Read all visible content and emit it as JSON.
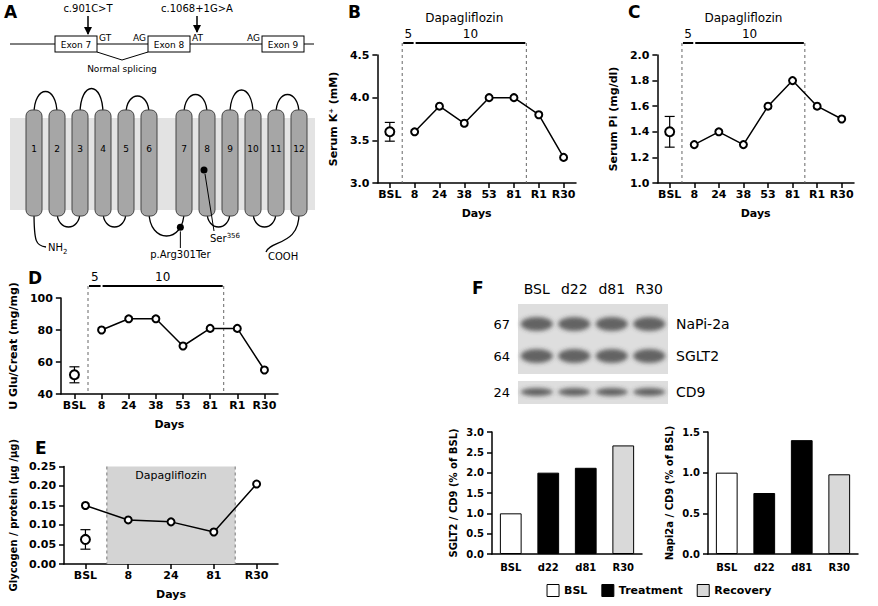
{
  "chart_data": [
    {
      "panel": "B",
      "type": "line",
      "x_label": "Days",
      "y_label": "Serum K⁺ (mM)",
      "categories": [
        "BSL",
        "8",
        "24",
        "38",
        "53",
        "81",
        "R1",
        "R30"
      ],
      "series": [
        {
          "color": "#000000",
          "marker": "open_circle",
          "values": [
            3.6,
            null,
            null,
            null,
            null,
            null,
            null,
            null
          ],
          "errors": [
            0.11,
            null,
            null,
            null,
            null,
            null,
            null,
            null
          ]
        },
        {
          "color": "#000000",
          "marker": "open_circle",
          "values": [
            null,
            3.6,
            3.9,
            3.7,
            4.0,
            4.0,
            3.8,
            3.3
          ]
        }
      ],
      "ylim": [
        3,
        4.5
      ],
      "yticks": [
        {
          "value": 3,
          "label": "3.0"
        },
        3.5,
        {
          "value": 4,
          "label": "4.0"
        },
        4.5
      ],
      "grid": false,
      "annotation": {
        "text": "Dapagliflozin",
        "from": "BSL",
        "to": "81",
        "doses": [
          "5",
          "10"
        ]
      }
    },
    {
      "panel": "C",
      "type": "line",
      "x_label": "Days",
      "y_label": "Serum Pi (mg/dl)",
      "categories": [
        "BSL",
        "8",
        "24",
        "38",
        "53",
        "81",
        "R1",
        "R30"
      ],
      "series": [
        {
          "color": "#000000",
          "marker": "open_circle",
          "values": [
            1.4,
            null,
            null,
            null,
            null,
            null,
            null,
            null
          ],
          "errors": [
            0.12,
            null,
            null,
            null,
            null,
            null,
            null,
            null
          ]
        },
        {
          "color": "#000000",
          "marker": "open_circle",
          "values": [
            null,
            1.3,
            1.4,
            1.3,
            1.6,
            1.8,
            1.6,
            1.5
          ]
        }
      ],
      "ylim": [
        1,
        2
      ],
      "yticks": [
        {
          "value": 1,
          "label": "1.0"
        },
        1.2,
        1.4,
        1.6,
        1.8,
        {
          "value": 2,
          "label": "2.0"
        }
      ],
      "grid": false,
      "annotation": {
        "text": "Dapagliflozin",
        "from": "BSL",
        "to": "81",
        "doses": [
          "5",
          "10"
        ]
      }
    },
    {
      "panel": "D",
      "type": "line",
      "x_label": "Days",
      "y_label": "U Glu/Creat (mg/mg)",
      "categories": [
        "BSL",
        "8",
        "24",
        "38",
        "53",
        "81",
        "R1",
        "R30"
      ],
      "series": [
        {
          "color": "#000000",
          "marker": "open_circle",
          "values": [
            52,
            null,
            null,
            null,
            null,
            null,
            null,
            null
          ],
          "errors": [
            5,
            null,
            null,
            null,
            null,
            null,
            null,
            null
          ]
        },
        {
          "color": "#000000",
          "marker": "open_circle",
          "values": [
            null,
            80,
            87,
            87,
            70,
            81,
            81,
            55
          ]
        }
      ],
      "ylim": [
        40,
        100
      ],
      "yticks": [
        40,
        60,
        80,
        100
      ],
      "grid": false,
      "annotation": {
        "from": "BSL",
        "to": "81",
        "doses": [
          "5",
          "10"
        ]
      }
    },
    {
      "panel": "E",
      "type": "line",
      "x_label": "Days",
      "y_label": "Glycogen / protein (µg /µg)",
      "categories": [
        "BSL",
        "8",
        "24",
        "81",
        "R30"
      ],
      "series": [
        {
          "color": "#000000",
          "marker": "open_circle",
          "values": [
            0.063,
            null,
            null,
            null,
            null
          ],
          "errors": [
            0.025,
            null,
            null,
            null,
            null
          ]
        },
        {
          "color": "#000000",
          "marker": "open_circle",
          "values": [
            0.15,
            0.113,
            0.108,
            0.082,
            0.205
          ]
        }
      ],
      "ylim": [
        0,
        0.25
      ],
      "yticks": [
        {
          "value": 0,
          "label": "0.00"
        },
        0.05,
        {
          "value": 0.1,
          "label": "0.10"
        },
        0.15,
        {
          "value": 0.2,
          "label": "0.20"
        },
        0.25
      ],
      "grid": false,
      "annotation": {
        "text": "Dapagliflozin",
        "from": "BSL",
        "to": "81"
      }
    },
    {
      "type": "bar",
      "y_label": "SGLT2 / CD9 (% of BSL)",
      "categories": [
        "BSL",
        "d22",
        "d81",
        "R30"
      ],
      "series": [
        {
          "name": "BSL",
          "color": "#ffffff",
          "values": [
            1.0,
            null,
            null,
            null
          ]
        },
        {
          "name": "Treatment",
          "color": "#000000",
          "values": [
            null,
            2.0,
            2.12,
            null
          ]
        },
        {
          "name": "Recovery",
          "color": "#d9d9d9",
          "values": [
            null,
            null,
            null,
            2.67
          ]
        }
      ],
      "ylim": [
        0,
        3
      ],
      "yticks": [
        {
          "value": 0,
          "label": "0.0"
        },
        0.5,
        {
          "value": 1,
          "label": "1.0"
        },
        1.5,
        {
          "value": 2,
          "label": "2.0"
        },
        2.5,
        {
          "value": 3,
          "label": "3.0"
        }
      ],
      "grid": false,
      "legend": "bottom"
    },
    {
      "type": "bar",
      "y_label": "Napi2a / CD9 (% of BSL)",
      "categories": [
        "BSL",
        "d22",
        "d81",
        "R30"
      ],
      "series": [
        {
          "name": "BSL",
          "color": "#ffffff",
          "values": [
            1.0,
            null,
            null,
            null
          ]
        },
        {
          "name": "Treatment",
          "color": "#000000",
          "values": [
            null,
            0.75,
            1.4,
            null
          ]
        },
        {
          "name": "Recovery",
          "color": "#d9d9d9",
          "values": [
            null,
            null,
            null,
            0.98
          ]
        }
      ],
      "ylim": [
        0,
        1.5
      ],
      "yticks": [
        {
          "value": 0,
          "label": "0.0"
        },
        0.5,
        {
          "value": 1,
          "label": "1.0"
        },
        1.5
      ],
      "grid": false,
      "legend": "bottom"
    }
  ],
  "diagram": {
    "panel": "A",
    "mutations": [
      "c.901C>T",
      "c.1068+1G>A"
    ],
    "exons": [
      "Exon 7",
      "Exon 8",
      "Exon 9"
    ],
    "splice_sites": [
      "GT",
      "AG",
      "AT",
      "AG"
    ],
    "splicing": "Normal splicing",
    "helices": [
      1,
      2,
      3,
      4,
      5,
      6,
      7,
      8,
      9,
      10,
      11,
      12
    ],
    "n_terminus": {
      "text": "NH",
      "sub": "2"
    },
    "c_terminus": "COOH",
    "residue": {
      "text": "Ser",
      "sup": "356"
    },
    "nonsense": "p.Arg301Ter"
  },
  "blot": {
    "panel": "F",
    "lanes": [
      "BSL",
      "d22",
      "d81",
      "R30"
    ],
    "bands": [
      {
        "size": 67,
        "name": "NaPi-2a"
      },
      {
        "size": 64,
        "name": "SGLT2"
      },
      {
        "size": 24,
        "name": "CD9"
      }
    ]
  }
}
